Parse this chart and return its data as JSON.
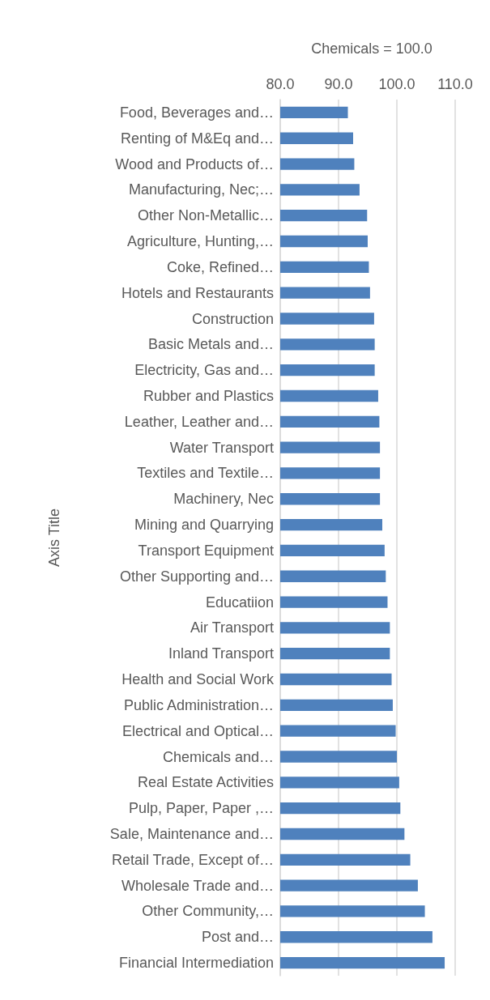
{
  "chart_data": {
    "type": "bar",
    "orientation": "horizontal",
    "title": "Chemicals = 100.0",
    "ylabel": "Axis Title",
    "categories": [
      "Food, Beverages and…",
      "Renting of M&Eq and…",
      "Wood and Products of…",
      "Manufacturing, Nec;…",
      "Other Non-Metallic…",
      "Agriculture, Hunting,…",
      "Coke, Refined…",
      "Hotels and Restaurants",
      "Construction",
      "Basic Metals and…",
      "Electricity, Gas and…",
      "Rubber and Plastics",
      "Leather, Leather and…",
      "Water Transport",
      "Textiles and Textile…",
      "Machinery, Nec",
      "Mining and Quarrying",
      "Transport Equipment",
      "Other Supporting and…",
      "Educatiion",
      "Air Transport",
      "Inland Transport",
      "Health and Social Work",
      "Public Administration…",
      "Electrical and Optical…",
      "Chemicals and…",
      "Real Estate Activities",
      "Pulp, Paper, Paper ,…",
      "Sale, Maintenance and…",
      "Retail Trade, Except of…",
      "Wholesale Trade and…",
      "Other Community,…",
      "Post and…",
      "Financial Intermediation"
    ],
    "values": [
      91.6,
      92.5,
      92.7,
      93.6,
      94.9,
      95.0,
      95.2,
      95.4,
      96.1,
      96.2,
      96.2,
      96.8,
      97.0,
      97.1,
      97.1,
      97.1,
      97.5,
      97.9,
      98.1,
      98.4,
      98.8,
      98.8,
      99.1,
      99.3,
      99.8,
      100.0,
      100.4,
      100.6,
      101.3,
      102.3,
      103.6,
      104.8,
      106.1,
      108.2
    ],
    "color": "#4f81bd",
    "xlim": [
      80,
      110
    ],
    "xticks": [
      {
        "value": 80,
        "label": "80.0"
      },
      {
        "value": 90,
        "label": "90.0"
      },
      {
        "value": 100,
        "label": "100.0"
      },
      {
        "value": 110,
        "label": "110.0"
      }
    ],
    "grid": "x"
  }
}
